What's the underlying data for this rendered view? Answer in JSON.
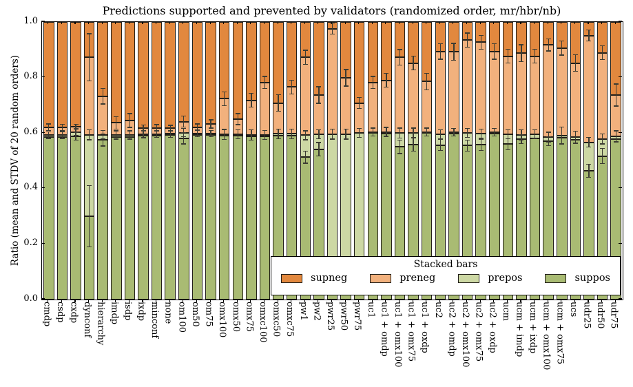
{
  "title": "Predictions supported and prevented by validators (randomized order, mr/hbr/nb)",
  "y_axis": {
    "label": "Ratio (mean and STDV of 20 random orders)",
    "tick_labels": [
      "0.0",
      "0.2",
      "0.4",
      "0.6",
      "0.8",
      "1.0"
    ],
    "tick_values": [
      0.0,
      0.2,
      0.4,
      0.6,
      0.8,
      1.0
    ]
  },
  "legend": {
    "title": "Stacked bars",
    "entries": [
      {
        "label": "supneg",
        "color": "#e2883e"
      },
      {
        "label": "preneg",
        "color": "#f2b17d"
      },
      {
        "label": "prepos",
        "color": "#cdd8a4"
      },
      {
        "label": "suppos",
        "color": "#a9bb73"
      }
    ]
  },
  "colors": {
    "supneg": "#e2883e",
    "preneg": "#f2b17d",
    "prepos": "#cdd8a4",
    "suppos": "#a9bb73",
    "bar_edge": "#23201a",
    "error_bar": "#3c3c33",
    "axis": "#000000",
    "background": "#ffffff"
  },
  "chart_data": {
    "type": "bar",
    "subtype": "stacked-vertical-with-error-bars",
    "title": "Predictions supported and prevented by validators (randomized order, mr/hbr/nb)",
    "xlabel": "",
    "ylabel": "Ratio (mean and STDV of 20 random orders)",
    "ylim": [
      0.0,
      1.0
    ],
    "grid": false,
    "legend_position": "lower-right-inside",
    "stack_order_bottom_to_top": [
      "suppos",
      "prepos",
      "preneg",
      "supneg"
    ],
    "note": "suppos+prepos+preneg+supneg = 1.0 for every bar; supneg = 1 - preneg_top; err_* are STDV half-widths at segment tops",
    "bars": [
      {
        "label": "cmdp",
        "suppos": 0.585,
        "prepos": 0.008,
        "preneg_top": 0.621,
        "err_suppos": 0.0,
        "err_boundary": 0.012,
        "err_preneg": 0.012
      },
      {
        "label": "csdp",
        "suppos": 0.585,
        "prepos": 0.008,
        "preneg_top": 0.62,
        "err_suppos": 0.0,
        "err_boundary": 0.012,
        "err_preneg": 0.012
      },
      {
        "label": "cxdp",
        "suppos": 0.588,
        "prepos": 0.016,
        "preneg_top": 0.622,
        "err_suppos": 0.014,
        "err_boundary": 0.012,
        "err_preneg": 0.01
      },
      {
        "label": "dynconf",
        "suppos": 0.3,
        "prepos": 0.294,
        "preneg_top": 0.873,
        "err_suppos": 0.11,
        "err_boundary": 0.018,
        "err_preneg": 0.085
      },
      {
        "label": "hierarchy",
        "suppos": 0.575,
        "prepos": 0.019,
        "preneg_top": 0.733,
        "err_suppos": 0.022,
        "err_boundary": 0.015,
        "err_preneg": 0.028
      },
      {
        "label": "imdp",
        "suppos": 0.585,
        "prepos": 0.008,
        "preneg_top": 0.637,
        "err_suppos": 0.0,
        "err_boundary": 0.015,
        "err_preneg": 0.022
      },
      {
        "label": "isdp",
        "suppos": 0.585,
        "prepos": 0.008,
        "preneg_top": 0.645,
        "err_suppos": 0.0,
        "err_boundary": 0.015,
        "err_preneg": 0.025
      },
      {
        "label": "ixdp",
        "suppos": 0.59,
        "prepos": 0.006,
        "preneg_top": 0.617,
        "err_suppos": 0.0,
        "err_boundary": 0.013,
        "err_preneg": 0.012
      },
      {
        "label": "minconf",
        "suppos": 0.59,
        "prepos": 0.006,
        "preneg_top": 0.618,
        "err_suppos": 0.0,
        "err_boundary": 0.012,
        "err_preneg": 0.012
      },
      {
        "label": "none",
        "suppos": 0.592,
        "prepos": 0.005,
        "preneg_top": 0.618,
        "err_suppos": 0.0,
        "err_boundary": 0.012,
        "err_preneg": 0.01
      },
      {
        "label": "om100",
        "suppos": 0.581,
        "prepos": 0.02,
        "preneg_top": 0.641,
        "err_suppos": 0.02,
        "err_boundary": 0.015,
        "err_preneg": 0.02
      },
      {
        "label": "om50",
        "suppos": 0.594,
        "prepos": 0.005,
        "preneg_top": 0.621,
        "err_suppos": 0.0,
        "err_boundary": 0.012,
        "err_preneg": 0.012
      },
      {
        "label": "om75",
        "suppos": 0.592,
        "prepos": 0.006,
        "preneg_top": 0.633,
        "err_suppos": 0.0,
        "err_boundary": 0.012,
        "err_preneg": 0.015
      },
      {
        "label": "omx100",
        "suppos": 0.59,
        "prepos": 0.005,
        "preneg_top": 0.724,
        "err_suppos": 0.0,
        "err_boundary": 0.018,
        "err_preneg": 0.025
      },
      {
        "label": "omx50",
        "suppos": 0.59,
        "prepos": 0.005,
        "preneg_top": 0.65,
        "err_suppos": 0.0,
        "err_boundary": 0.016,
        "err_preneg": 0.02
      },
      {
        "label": "omx75",
        "suppos": 0.588,
        "prepos": 0.005,
        "preneg_top": 0.718,
        "err_suppos": 0.0,
        "err_boundary": 0.018,
        "err_preneg": 0.025
      },
      {
        "label": "omxc100",
        "suppos": 0.588,
        "prepos": 0.005,
        "preneg_top": 0.782,
        "err_suppos": 0.0,
        "err_boundary": 0.016,
        "err_preneg": 0.022
      },
      {
        "label": "omxc50",
        "suppos": 0.59,
        "prepos": 0.007,
        "preneg_top": 0.708,
        "err_suppos": 0.0,
        "err_boundary": 0.018,
        "err_preneg": 0.03
      },
      {
        "label": "omxc75",
        "suppos": 0.59,
        "prepos": 0.007,
        "preneg_top": 0.766,
        "err_suppos": 0.0,
        "err_boundary": 0.018,
        "err_preneg": 0.025
      },
      {
        "label": "pw1",
        "suppos": 0.513,
        "prepos": 0.079,
        "preneg_top": 0.873,
        "err_suppos": 0.022,
        "err_boundary": 0.016,
        "err_preneg": 0.025
      },
      {
        "label": "pw2",
        "suppos": 0.542,
        "prepos": 0.054,
        "preneg_top": 0.737,
        "err_suppos": 0.024,
        "err_boundary": 0.016,
        "err_preneg": 0.03
      },
      {
        "label": "pwr25",
        "suppos": 0.1,
        "prepos": 0.496,
        "preneg_top": 0.976,
        "err_suppos": 0.0,
        "err_boundary": 0.018,
        "err_preneg": 0.02
      },
      {
        "label": "pwr50",
        "suppos": 0.1,
        "prepos": 0.496,
        "preneg_top": 0.799,
        "err_suppos": 0.0,
        "err_boundary": 0.018,
        "err_preneg": 0.03
      },
      {
        "label": "pwr75",
        "suppos": 0.1,
        "prepos": 0.5,
        "preneg_top": 0.708,
        "err_suppos": 0.0,
        "err_boundary": 0.016,
        "err_preneg": 0.02
      },
      {
        "label": "uc1",
        "suppos": 0.6,
        "prepos": 0.004,
        "preneg_top": 0.782,
        "err_suppos": 0.0,
        "err_boundary": 0.014,
        "err_preneg": 0.022
      },
      {
        "label": "uc1 + omdp",
        "suppos": 0.598,
        "prepos": 0.006,
        "preneg_top": 0.79,
        "err_suppos": 0.0,
        "err_boundary": 0.016,
        "err_preneg": 0.025
      },
      {
        "label": "uc1 + omx100",
        "suppos": 0.55,
        "prepos": 0.05,
        "preneg_top": 0.873,
        "err_suppos": 0.024,
        "err_boundary": 0.018,
        "err_preneg": 0.028
      },
      {
        "label": "uc1 + omx75",
        "suppos": 0.559,
        "prepos": 0.041,
        "preneg_top": 0.852,
        "err_suppos": 0.024,
        "err_boundary": 0.018,
        "err_preneg": 0.025
      },
      {
        "label": "uc1 + oxdp",
        "suppos": 0.6,
        "prepos": 0.004,
        "preneg_top": 0.786,
        "err_suppos": 0.0,
        "err_boundary": 0.014,
        "err_preneg": 0.03
      },
      {
        "label": "uc2",
        "suppos": 0.557,
        "prepos": 0.039,
        "preneg_top": 0.894,
        "err_suppos": 0.02,
        "err_boundary": 0.016,
        "err_preneg": 0.028
      },
      {
        "label": "uc2 + omdp",
        "suppos": 0.598,
        "prepos": 0.005,
        "preneg_top": 0.893,
        "err_suppos": 0.0,
        "err_boundary": 0.014,
        "err_preneg": 0.03
      },
      {
        "label": "uc2 + omx100",
        "suppos": 0.555,
        "prepos": 0.045,
        "preneg_top": 0.935,
        "err_suppos": 0.02,
        "err_boundary": 0.016,
        "err_preneg": 0.025
      },
      {
        "label": "uc2 + omx75",
        "suppos": 0.558,
        "prepos": 0.04,
        "preneg_top": 0.927,
        "err_suppos": 0.02,
        "err_boundary": 0.016,
        "err_preneg": 0.025
      },
      {
        "label": "uc2 + oxdp",
        "suppos": 0.598,
        "prepos": 0.005,
        "preneg_top": 0.894,
        "err_suppos": 0.0,
        "err_boundary": 0.014,
        "err_preneg": 0.028
      },
      {
        "label": "ucm",
        "suppos": 0.56,
        "prepos": 0.036,
        "preneg_top": 0.877,
        "err_suppos": 0.02,
        "err_boundary": 0.016,
        "err_preneg": 0.025
      },
      {
        "label": "ucm + imdp",
        "suppos": 0.578,
        "prepos": 0.015,
        "preneg_top": 0.888,
        "err_suppos": 0.016,
        "err_boundary": 0.018,
        "err_preneg": 0.03
      },
      {
        "label": "ucm + ixdp",
        "suppos": 0.58,
        "prepos": 0.015,
        "preneg_top": 0.877,
        "err_suppos": 0.0,
        "err_boundary": 0.016,
        "err_preneg": 0.025
      },
      {
        "label": "ucm + omx100",
        "suppos": 0.57,
        "prepos": 0.015,
        "preneg_top": 0.918,
        "err_suppos": 0.016,
        "err_boundary": 0.018,
        "err_preneg": 0.022
      },
      {
        "label": "ucm + omx75",
        "suppos": 0.583,
        "prepos": 0.008,
        "preneg_top": 0.906,
        "err_suppos": 0.0,
        "err_boundary": 0.03,
        "err_preneg": 0.025
      },
      {
        "label": "ucs",
        "suppos": 0.575,
        "prepos": 0.01,
        "preneg_top": 0.852,
        "err_suppos": 0.0,
        "err_boundary": 0.022,
        "err_preneg": 0.03
      },
      {
        "label": "udr25",
        "suppos": 0.464,
        "prepos": 0.103,
        "preneg_top": 0.951,
        "err_suppos": 0.023,
        "err_boundary": 0.018,
        "err_preneg": 0.02
      },
      {
        "label": "udr50",
        "suppos": 0.517,
        "prepos": 0.062,
        "preneg_top": 0.889,
        "err_suppos": 0.027,
        "err_boundary": 0.018,
        "err_preneg": 0.025
      },
      {
        "label": "udr75",
        "suppos": 0.578,
        "prepos": 0.01,
        "preneg_top": 0.737,
        "err_suppos": 0.025,
        "err_boundary": 0.02,
        "err_preneg": 0.04
      }
    ]
  }
}
